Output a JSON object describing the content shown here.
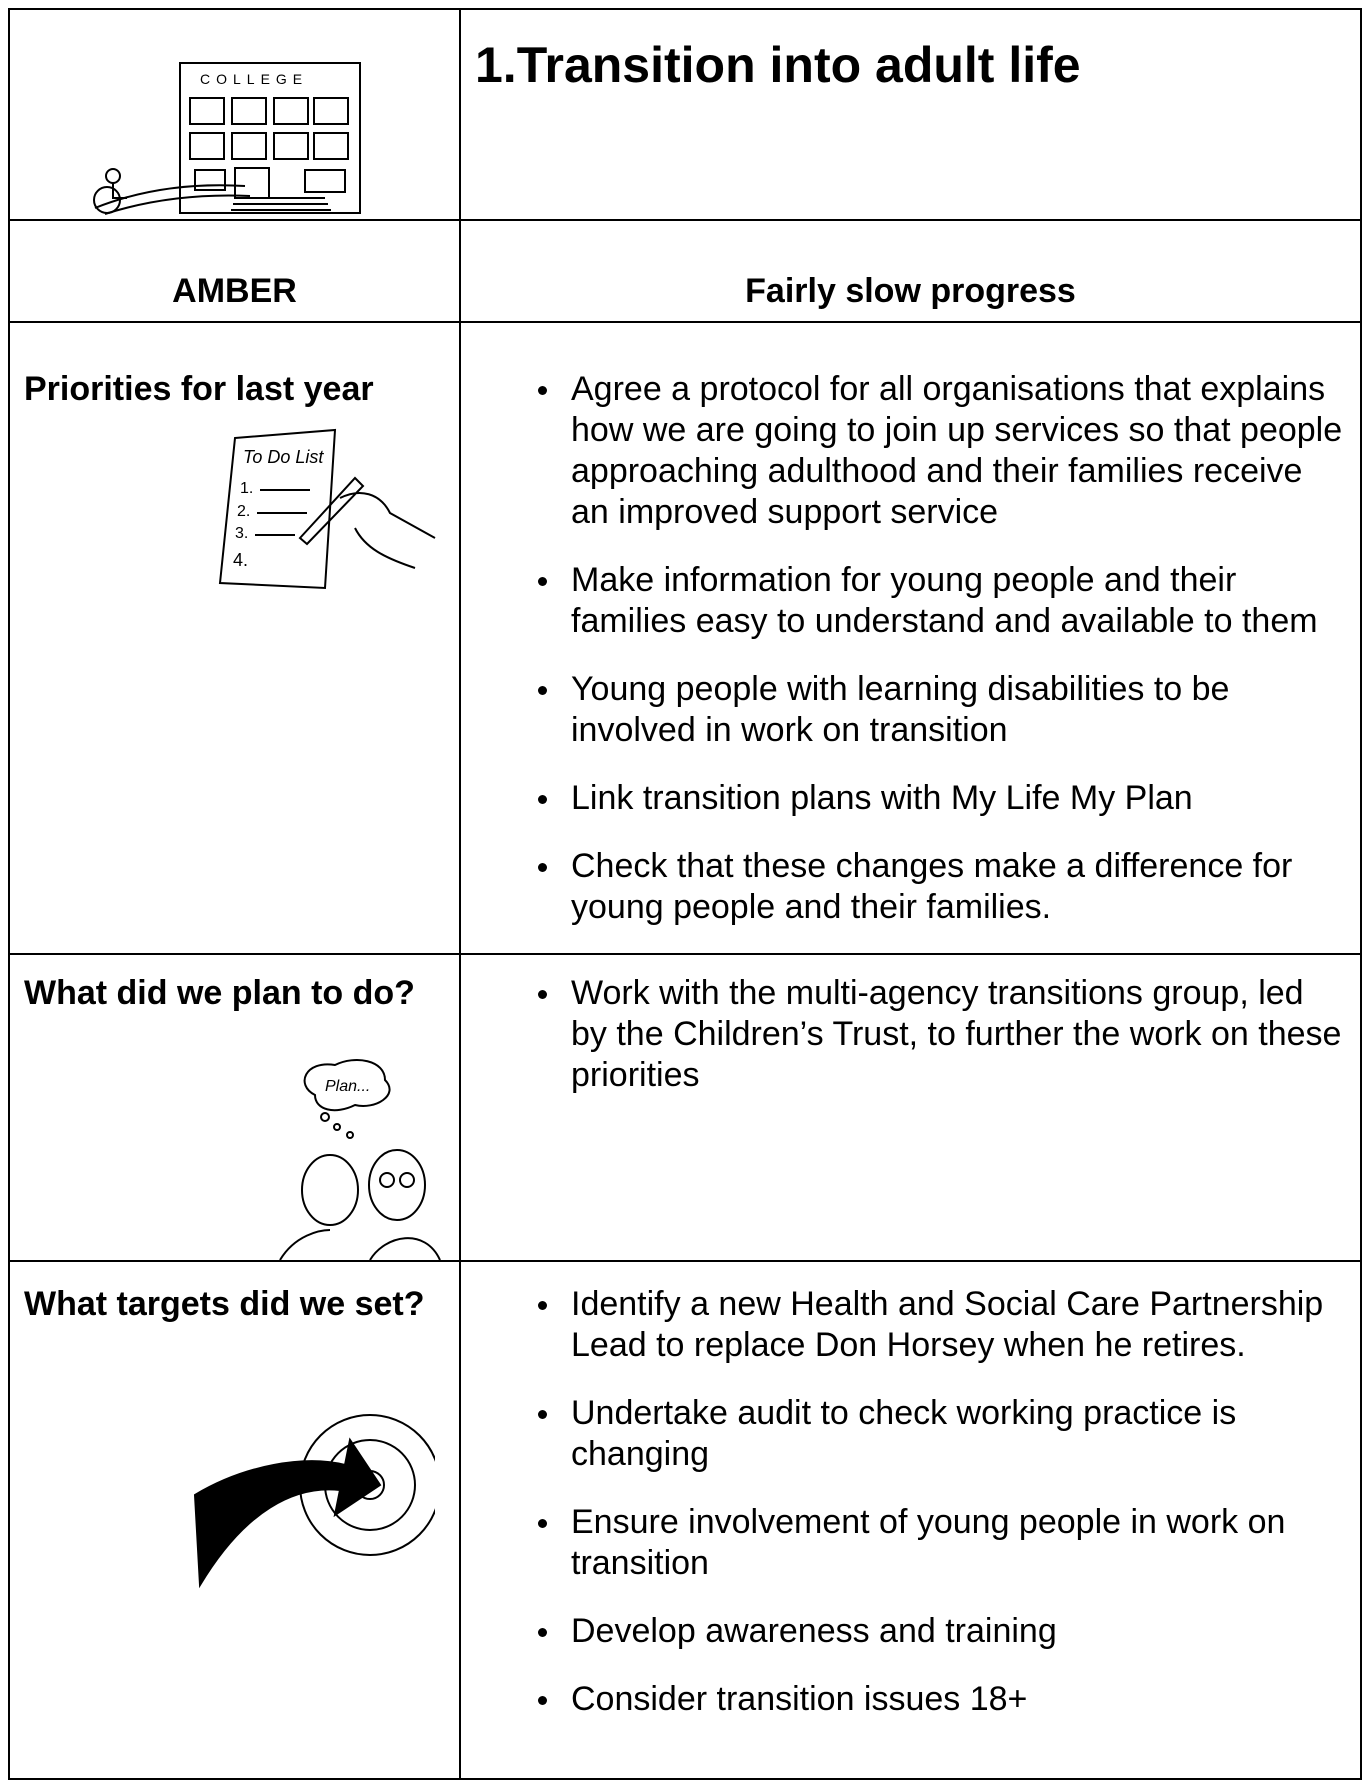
{
  "header": {
    "title": "1.Transition into adult life",
    "status": "AMBER",
    "progress": "Fairly slow progress"
  },
  "sections": [
    {
      "heading": "Priorities for last year",
      "items": [
        "Agree a protocol for all organisations that explains how we are going to join up services so that people approaching adulthood and their families receive an improved support service",
        "Make information for young people and their families easy to understand and available to them",
        "Young people with learning disabilities to be involved in work on transition",
        "Link transition plans with My Life My Plan",
        "Check that these changes make a difference for young people and their families."
      ]
    },
    {
      "heading": "What did we plan to do?",
      "items": [
        "Work with the multi-agency transitions group, led by the Children’s Trust, to further the work on these priorities"
      ]
    },
    {
      "heading": "What targets did we set?",
      "items": [
        "Identify a new Health and Social Care Partnership Lead to replace Don Horsey when he retires.",
        "Undertake audit to check working practice is changing",
        "Ensure involvement of young people in work on transition",
        "Develop awareness and training",
        "Consider transition issues 18+"
      ]
    }
  ]
}
